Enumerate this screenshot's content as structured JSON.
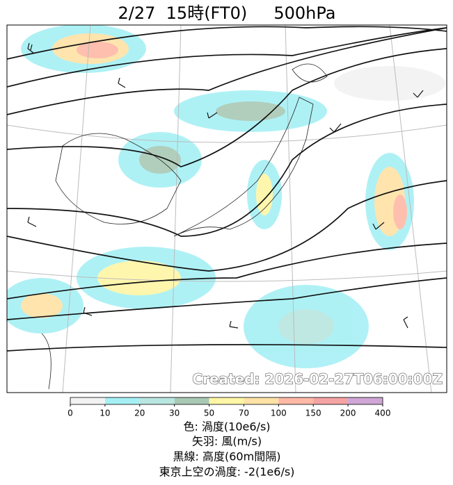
{
  "title": "2/27  15時(FT0)     500hPa",
  "created": "Created: 2026-02-27T06:00:00Z",
  "colorbar": {
    "ticks": [
      0,
      10,
      20,
      30,
      50,
      70,
      100,
      150,
      200,
      400
    ],
    "colors": [
      "#f2f2f2",
      "#a6f0f5",
      "#b9e6e0",
      "#a9c9b5",
      "#fff6a6",
      "#ffe2a6",
      "#ffb9a6",
      "#f5a3a3",
      "#cfa6d6"
    ]
  },
  "legend": [
    "色: 渦度(10e6/s)",
    "矢羽: 風(m/s)",
    "黒線: 高度(60m間隔)",
    "東京上空の渦度: -2(1e6/s)"
  ]
}
